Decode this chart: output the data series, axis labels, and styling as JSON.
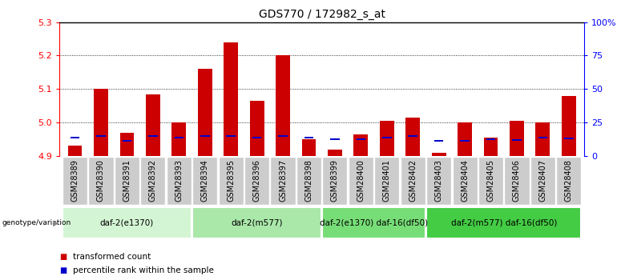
{
  "title": "GDS770 / 172982_s_at",
  "samples": [
    "GSM28389",
    "GSM28390",
    "GSM28391",
    "GSM28392",
    "GSM28393",
    "GSM28394",
    "GSM28395",
    "GSM28396",
    "GSM28397",
    "GSM28398",
    "GSM28399",
    "GSM28400",
    "GSM28401",
    "GSM28402",
    "GSM28403",
    "GSM28404",
    "GSM28405",
    "GSM28406",
    "GSM28407",
    "GSM28408"
  ],
  "red_values": [
    4.93,
    5.1,
    4.97,
    5.085,
    5.0,
    5.16,
    5.24,
    5.065,
    5.2,
    4.95,
    4.92,
    4.965,
    5.005,
    5.015,
    4.91,
    5.0,
    4.955,
    5.005,
    5.0,
    5.08
  ],
  "blue_values": [
    4.955,
    4.96,
    4.945,
    4.96,
    4.955,
    4.96,
    4.96,
    4.955,
    4.96,
    4.955,
    4.95,
    4.95,
    4.955,
    4.96,
    4.945,
    4.945,
    4.95,
    4.948,
    4.955,
    4.952
  ],
  "ymin": 4.9,
  "ymax": 5.3,
  "yticks": [
    4.9,
    5.0,
    5.1,
    5.2,
    5.3
  ],
  "right_yticks": [
    0,
    25,
    50,
    75,
    100
  ],
  "right_yticklabels": [
    "0",
    "25",
    "50",
    "75",
    "100%"
  ],
  "groups": [
    {
      "label": "daf-2(e1370)",
      "start": 0,
      "end": 4,
      "color": "#d4f5d4"
    },
    {
      "label": "daf-2(m577)",
      "start": 5,
      "end": 9,
      "color": "#aae8aa"
    },
    {
      "label": "daf-2(e1370) daf-16(df50)",
      "start": 10,
      "end": 13,
      "color": "#77dd77"
    },
    {
      "label": "daf-2(m577) daf-16(df50)",
      "start": 14,
      "end": 19,
      "color": "#44cc44"
    }
  ],
  "genotype_label": "genotype/variation",
  "legend_red": "transformed count",
  "legend_blue": "percentile rank within the sample",
  "red_color": "#cc0000",
  "blue_color": "#0000cc",
  "bar_width": 0.55,
  "cell_bg": "#cccccc",
  "title_fontsize": 10,
  "tick_fontsize": 7,
  "label_fontsize": 8,
  "group_fontsize": 7.5
}
